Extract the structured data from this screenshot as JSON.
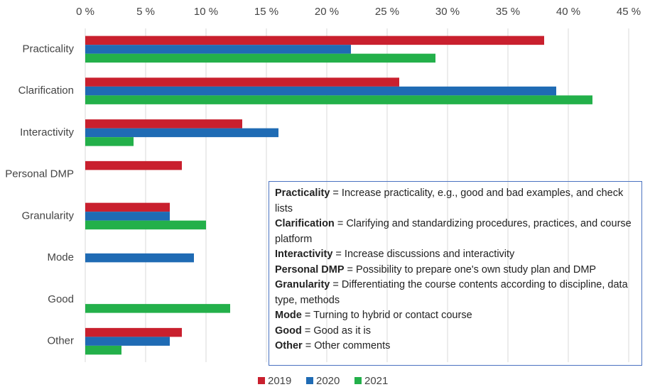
{
  "chart_data": {
    "type": "bar",
    "orientation": "horizontal",
    "categories": [
      "Practicality",
      "Clarification",
      "Interactivity",
      "Personal DMP",
      "Granularity",
      "Mode",
      "Good",
      "Other"
    ],
    "series": [
      {
        "name": "2019",
        "color": "#c9202e",
        "values": [
          38,
          26,
          13,
          8,
          7,
          0,
          0,
          8
        ]
      },
      {
        "name": "2020",
        "color": "#1f6bb4",
        "values": [
          22,
          39,
          16,
          0,
          7,
          9,
          0,
          7
        ]
      },
      {
        "name": "2021",
        "color": "#23b04a",
        "values": [
          29,
          42,
          4,
          0,
          10,
          0,
          12,
          3
        ]
      }
    ],
    "xlim": [
      0,
      45
    ],
    "xticks": [
      {
        "value": 0,
        "label": "0 %"
      },
      {
        "value": 5,
        "label": "5 %"
      },
      {
        "value": 10,
        "label": "10 %"
      },
      {
        "value": 15,
        "label": "15 %"
      },
      {
        "value": 20,
        "label": "20 %"
      },
      {
        "value": 25,
        "label": "25 %"
      },
      {
        "value": 30,
        "label": "30 %"
      },
      {
        "value": 35,
        "label": "35 %"
      },
      {
        "value": 40,
        "label": "40 %"
      },
      {
        "value": 45,
        "label": "45 %"
      }
    ],
    "grid": true,
    "legend": "bottom",
    "annotation_box": [
      {
        "term": "Practicality",
        "text": " = Increase practicality, e.g., good and bad examples, and check lists"
      },
      {
        "term": "Clarification",
        "text": " = Clarifying and standardizing procedures, practices, and course platform"
      },
      {
        "term": "Interactivity",
        "text": " = Increase discussions and interactivity"
      },
      {
        "term": "Personal DMP",
        "text": " = Possibility to prepare one's own study plan and DMP"
      },
      {
        "term": "Granularity",
        "text": " = Differentiating the course contents according to discipline, data type, methods"
      },
      {
        "term": "Mode",
        "text": " = Turning to hybrid or contact course"
      },
      {
        "term": "Good",
        "text": " = Good as it is"
      },
      {
        "term": "Other",
        "text": " = Other comments"
      }
    ]
  }
}
